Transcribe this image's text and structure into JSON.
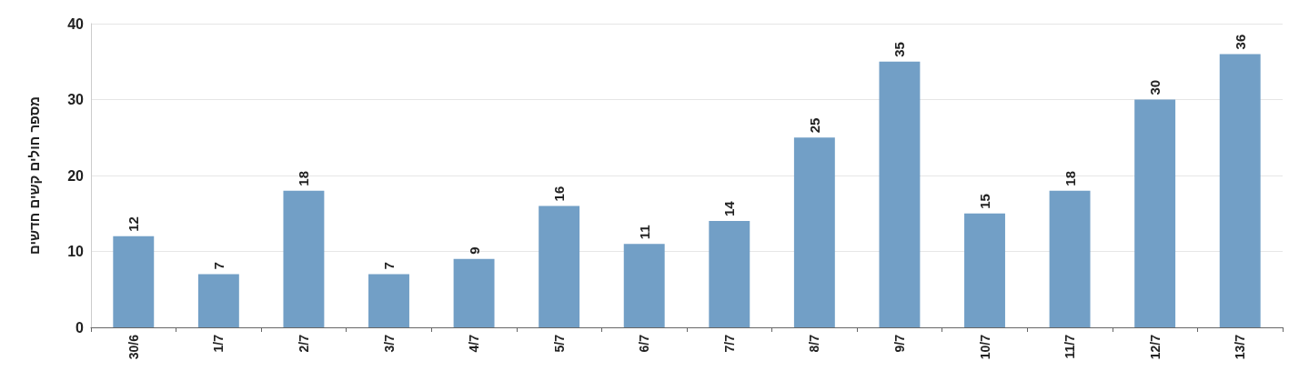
{
  "chart_data": {
    "type": "bar",
    "ylabel": "מספר חולים קשים חדשים",
    "categories": [
      "30/6",
      "1/7",
      "2/7",
      "3/7",
      "4/7",
      "5/7",
      "6/7",
      "7/7",
      "8/7",
      "9/7",
      "10/7",
      "11/7",
      "12/7",
      "13/7"
    ],
    "values": [
      12,
      7,
      18,
      7,
      9,
      16,
      11,
      14,
      25,
      35,
      15,
      18,
      30,
      36
    ],
    "color": "#729fc6",
    "ylim": [
      0,
      40
    ],
    "yticks": [
      0,
      10,
      20,
      30,
      40
    ],
    "grid": "y",
    "data_labels": true
  }
}
